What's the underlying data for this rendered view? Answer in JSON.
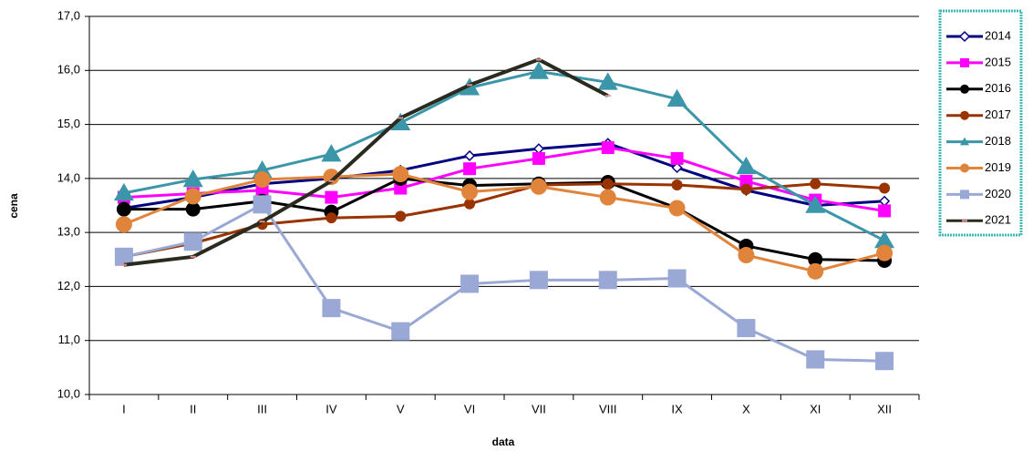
{
  "chart_data": {
    "type": "line",
    "x_label": "data",
    "y_label": "cena",
    "categories": [
      "I",
      "II",
      "III",
      "IV",
      "V",
      "VI",
      "VII",
      "VIII",
      "IX",
      "X",
      "XI",
      "XII"
    ],
    "ylim": [
      10,
      17
    ],
    "yticks": [
      {
        "value": 10,
        "label": "10,0"
      },
      {
        "value": 11,
        "label": "11,0"
      },
      {
        "value": 12,
        "label": "12,0"
      },
      {
        "value": 13,
        "label": "13,0"
      },
      {
        "value": 14,
        "label": "14,0"
      },
      {
        "value": 15,
        "label": "15,0"
      },
      {
        "value": 16,
        "label": "16,0"
      },
      {
        "value": 17,
        "label": "17,0"
      }
    ],
    "grid": true,
    "legend": "right",
    "series": [
      {
        "name": "2014",
        "color": "#000080",
        "marker": "diamond",
        "values": [
          13.45,
          13.65,
          13.9,
          14.0,
          14.15,
          14.42,
          14.55,
          14.65,
          14.2,
          13.78,
          13.5,
          13.58
        ]
      },
      {
        "name": "2015",
        "color": "#ff00ff",
        "marker": "square",
        "values": [
          13.65,
          13.72,
          13.78,
          13.65,
          13.82,
          14.18,
          14.37,
          14.57,
          14.37,
          13.95,
          13.6,
          13.4
        ]
      },
      {
        "name": "2016",
        "color": "#000000",
        "marker": "circle",
        "values": [
          13.43,
          13.43,
          13.58,
          13.38,
          14.0,
          13.87,
          13.9,
          13.93,
          13.45,
          12.75,
          12.5,
          12.48
        ]
      },
      {
        "name": "2017",
        "color": "#993300",
        "marker": "circle",
        "values": [
          12.55,
          12.8,
          13.15,
          13.27,
          13.3,
          13.53,
          13.88,
          13.9,
          13.88,
          13.8,
          13.9,
          13.82
        ]
      },
      {
        "name": "2018",
        "color": "#3a96a8",
        "marker": "triangle",
        "values": [
          13.73,
          13.98,
          14.15,
          14.45,
          15.03,
          15.68,
          15.98,
          15.78,
          15.47,
          14.22,
          13.5,
          12.85
        ]
      },
      {
        "name": "2019",
        "color": "#e0843c",
        "marker": "circle",
        "values": [
          13.15,
          13.67,
          13.98,
          14.03,
          14.08,
          13.75,
          13.85,
          13.65,
          13.45,
          12.58,
          12.28,
          12.62
        ]
      },
      {
        "name": "2020",
        "color": "#99a8d4",
        "marker": "square",
        "values": [
          12.55,
          12.83,
          13.52,
          11.6,
          11.17,
          12.05,
          12.12,
          12.12,
          12.15,
          11.23,
          10.65,
          10.62
        ]
      },
      {
        "name": "2021",
        "color": "#2b2a1e",
        "marker": "dash",
        "values": [
          12.4,
          12.55,
          13.2,
          13.95,
          15.12,
          15.73,
          16.2,
          15.53,
          null,
          null,
          null,
          null
        ]
      }
    ]
  }
}
